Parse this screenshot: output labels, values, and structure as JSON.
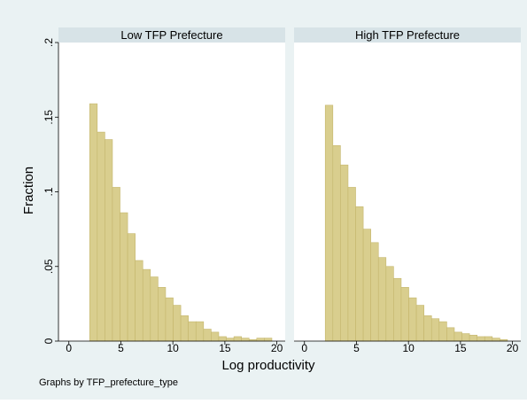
{
  "y_label": "Fraction",
  "x_label": "Log productivity",
  "note": "Graphs by TFP_prefecture_type",
  "chart_data": [
    {
      "type": "histogram",
      "title": "Low TFP Prefecture",
      "color": "#d9ce8e",
      "bins": [
        2.0,
        2.73,
        3.46,
        4.19,
        4.92,
        5.65,
        6.38,
        7.11,
        7.84,
        8.57,
        9.3,
        10.03,
        10.76,
        11.49,
        12.22,
        12.95,
        13.68,
        14.41,
        15.14,
        15.87,
        16.6,
        17.33,
        18.06,
        18.79,
        19.52
      ],
      "values": [
        0.159,
        0.14,
        0.135,
        0.103,
        0.086,
        0.072,
        0.054,
        0.048,
        0.043,
        0.036,
        0.029,
        0.024,
        0.017,
        0.013,
        0.013,
        0.008,
        0.006,
        0.003,
        0.002,
        0.003,
        0.002,
        0.001,
        0.002,
        0.002
      ],
      "xlim": [
        -1,
        20.8
      ],
      "ylim": [
        0,
        0.2
      ],
      "xticks": [
        0,
        5,
        10,
        15,
        20
      ],
      "yticks": [
        0,
        {
          "value": 0.05,
          "label": ".05"
        },
        {
          "value": 0.1,
          "label": ".1"
        },
        {
          "value": 0.15,
          "label": ".15"
        },
        {
          "value": 0.2,
          "label": ".2"
        }
      ]
    },
    {
      "type": "histogram",
      "title": "High TFP Prefecture",
      "color": "#d9ce8e",
      "bins": [
        2.0,
        2.73,
        3.46,
        4.19,
        4.92,
        5.65,
        6.38,
        7.11,
        7.84,
        8.57,
        9.3,
        10.03,
        10.76,
        11.49,
        12.22,
        12.95,
        13.68,
        14.41,
        15.14,
        15.87,
        16.6,
        17.33,
        18.06,
        18.79,
        19.52
      ],
      "values": [
        0.158,
        0.131,
        0.118,
        0.103,
        0.09,
        0.075,
        0.066,
        0.056,
        0.05,
        0.042,
        0.036,
        0.029,
        0.024,
        0.017,
        0.015,
        0.013,
        0.009,
        0.006,
        0.005,
        0.004,
        0.003,
        0.003,
        0.002,
        0.001
      ],
      "xlim": [
        -1,
        20.8
      ],
      "ylim": [
        0,
        0.2
      ],
      "xticks": [
        0,
        5,
        10,
        15,
        20
      ]
    }
  ]
}
